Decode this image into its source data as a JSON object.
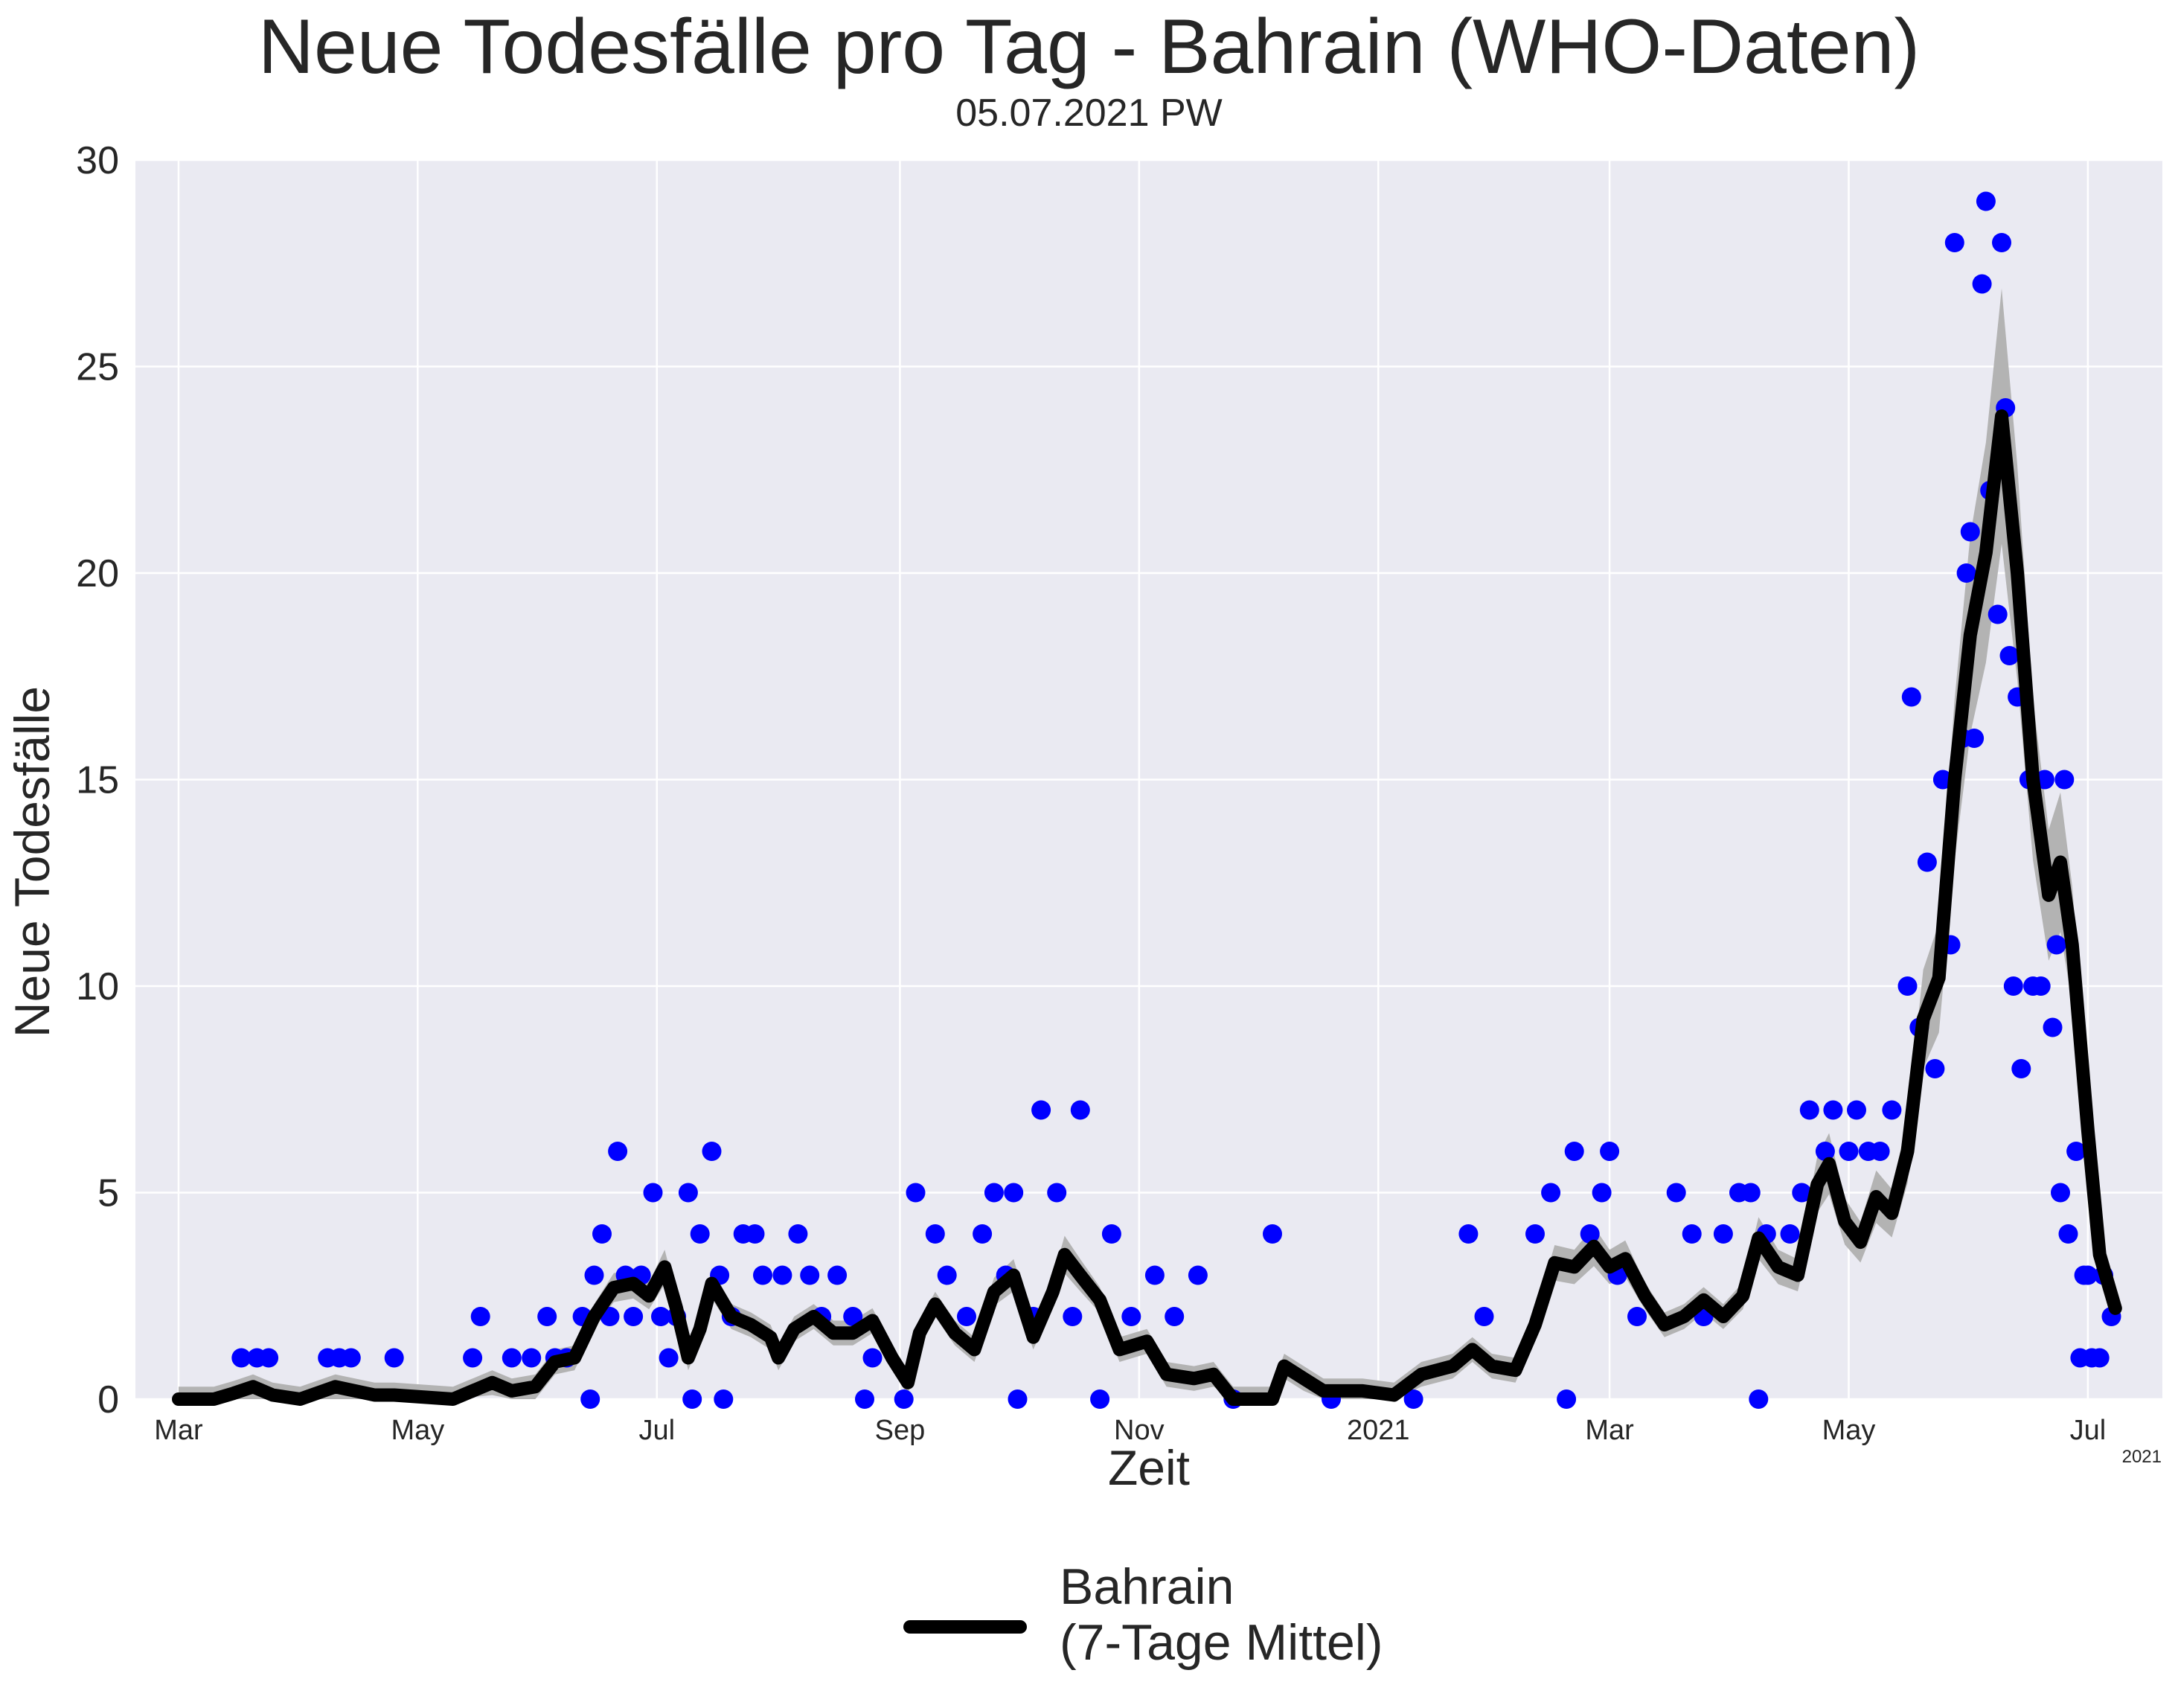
{
  "title": "Neue Todesfälle pro Tag - Bahrain (WHO-Daten)",
  "subtitle": "05.07.2021 PW",
  "colors": {
    "background": "#eaeaf2",
    "grid": "#ffffff",
    "points": "#0000ff",
    "line": "#000000",
    "band": "#b3b3b3"
  },
  "legend": {
    "label": "Bahrain\n(7-Tage Mittel)",
    "placement": "bottom-center"
  },
  "chart_data": {
    "type": "line",
    "title": "Neue Todesfälle pro Tag - Bahrain (WHO-Daten)",
    "xlabel": "Zeit",
    "ylabel": "Neue Todesfälle",
    "ylim": [
      0,
      30
    ],
    "yticks": [
      0,
      5,
      10,
      15,
      20,
      25,
      30
    ],
    "xlim": [
      "2020-02-19",
      "2021-07-20"
    ],
    "xticks": [
      {
        "date": "2020-03-01",
        "label": "Mar"
      },
      {
        "date": "2020-05-01",
        "label": "May"
      },
      {
        "date": "2020-07-01",
        "label": "Jul"
      },
      {
        "date": "2020-09-01",
        "label": "Sep"
      },
      {
        "date": "2020-11-01",
        "label": "Nov"
      },
      {
        "date": "2021-01-01",
        "label": "2021"
      },
      {
        "date": "2021-03-01",
        "label": "Mar"
      },
      {
        "date": "2021-05-01",
        "label": "May"
      },
      {
        "date": "2021-07-01",
        "label": "Jul"
      }
    ],
    "x_offset_label": "2021",
    "grid": true,
    "series": [
      {
        "name": "Bahrain\n(7-Tage Mittel)",
        "kind": "line",
        "points": [
          [
            "2020-03-01",
            0
          ],
          [
            "2020-03-10",
            0
          ],
          [
            "2020-03-15",
            0.14
          ],
          [
            "2020-03-20",
            0.3
          ],
          [
            "2020-03-25",
            0.1
          ],
          [
            "2020-04-01",
            0
          ],
          [
            "2020-04-10",
            0.3
          ],
          [
            "2020-04-20",
            0.1
          ],
          [
            "2020-04-25",
            0.1
          ],
          [
            "2020-05-10",
            0
          ],
          [
            "2020-05-20",
            0.4
          ],
          [
            "2020-05-25",
            0.2
          ],
          [
            "2020-05-31",
            0.3
          ],
          [
            "2020-06-05",
            0.9
          ],
          [
            "2020-06-10",
            1.0
          ],
          [
            "2020-06-15",
            2.0
          ],
          [
            "2020-06-20",
            2.7
          ],
          [
            "2020-06-25",
            2.8
          ],
          [
            "2020-06-29",
            2.5
          ],
          [
            "2020-07-03",
            3.2
          ],
          [
            "2020-07-06",
            2.2
          ],
          [
            "2020-07-09",
            1.0
          ],
          [
            "2020-07-12",
            1.7
          ],
          [
            "2020-07-15",
            2.8
          ],
          [
            "2020-07-20",
            2.0
          ],
          [
            "2020-07-25",
            1.8
          ],
          [
            "2020-07-30",
            1.5
          ],
          [
            "2020-08-01",
            1.0
          ],
          [
            "2020-08-05",
            1.7
          ],
          [
            "2020-08-10",
            2.0
          ],
          [
            "2020-08-15",
            1.6
          ],
          [
            "2020-08-20",
            1.6
          ],
          [
            "2020-08-25",
            1.9
          ],
          [
            "2020-08-30",
            1.0
          ],
          [
            "2020-09-03",
            0.4
          ],
          [
            "2020-09-06",
            1.6
          ],
          [
            "2020-09-10",
            2.3
          ],
          [
            "2020-09-15",
            1.6
          ],
          [
            "2020-09-20",
            1.2
          ],
          [
            "2020-09-25",
            2.6
          ],
          [
            "2020-09-30",
            3.0
          ],
          [
            "2020-10-05",
            1.5
          ],
          [
            "2020-10-10",
            2.6
          ],
          [
            "2020-10-13",
            3.5
          ],
          [
            "2020-10-17",
            3.0
          ],
          [
            "2020-10-22",
            2.4
          ],
          [
            "2020-10-27",
            1.2
          ],
          [
            "2020-11-03",
            1.4
          ],
          [
            "2020-11-08",
            0.6
          ],
          [
            "2020-11-15",
            0.5
          ],
          [
            "2020-11-20",
            0.6
          ],
          [
            "2020-11-25",
            0
          ],
          [
            "2020-12-05",
            0
          ],
          [
            "2020-12-08",
            0.8
          ],
          [
            "2020-12-13",
            0.5
          ],
          [
            "2020-12-18",
            0.2
          ],
          [
            "2020-12-28",
            0.2
          ],
          [
            "2021-01-05",
            0.1
          ],
          [
            "2021-01-12",
            0.6
          ],
          [
            "2021-01-20",
            0.8
          ],
          [
            "2021-01-25",
            1.2
          ],
          [
            "2021-01-30",
            0.8
          ],
          [
            "2021-02-05",
            0.7
          ],
          [
            "2021-02-10",
            1.8
          ],
          [
            "2021-02-15",
            3.3
          ],
          [
            "2021-02-20",
            3.2
          ],
          [
            "2021-02-25",
            3.7
          ],
          [
            "2021-03-01",
            3.2
          ],
          [
            "2021-03-05",
            3.4
          ],
          [
            "2021-03-10",
            2.5
          ],
          [
            "2021-03-15",
            1.8
          ],
          [
            "2021-03-20",
            2.0
          ],
          [
            "2021-03-25",
            2.4
          ],
          [
            "2021-03-30",
            2.0
          ],
          [
            "2021-04-04",
            2.5
          ],
          [
            "2021-04-08",
            3.9
          ],
          [
            "2021-04-13",
            3.2
          ],
          [
            "2021-04-18",
            3.0
          ],
          [
            "2021-04-23",
            5.2
          ],
          [
            "2021-04-26",
            5.7
          ],
          [
            "2021-04-30",
            4.3
          ],
          [
            "2021-05-04",
            3.8
          ],
          [
            "2021-05-08",
            4.9
          ],
          [
            "2021-05-12",
            4.5
          ],
          [
            "2021-05-16",
            6.0
          ],
          [
            "2021-05-20",
            9.2
          ],
          [
            "2021-05-24",
            10.2
          ],
          [
            "2021-05-28",
            15.0
          ],
          [
            "2021-06-01",
            18.5
          ],
          [
            "2021-06-05",
            20.5
          ],
          [
            "2021-06-09",
            23.8
          ],
          [
            "2021-06-13",
            20.0
          ],
          [
            "2021-06-17",
            15.0
          ],
          [
            "2021-06-21",
            12.2
          ],
          [
            "2021-06-24",
            13.0
          ],
          [
            "2021-06-27",
            11.0
          ],
          [
            "2021-07-01",
            6.5
          ],
          [
            "2021-07-04",
            3.5
          ],
          [
            "2021-07-08",
            2.2
          ]
        ]
      },
      {
        "name": "",
        "kind": "scatter",
        "points": [
          [
            "2020-03-17",
            1
          ],
          [
            "2020-03-21",
            1
          ],
          [
            "2020-03-24",
            1
          ],
          [
            "2020-04-08",
            1
          ],
          [
            "2020-04-11",
            1
          ],
          [
            "2020-04-14",
            1
          ],
          [
            "2020-04-25",
            1
          ],
          [
            "2020-05-15",
            1
          ],
          [
            "2020-05-17",
            2
          ],
          [
            "2020-05-25",
            1
          ],
          [
            "2020-05-30",
            1
          ],
          [
            "2020-06-03",
            2
          ],
          [
            "2020-06-05",
            1
          ],
          [
            "2020-06-08",
            1
          ],
          [
            "2020-06-12",
            2
          ],
          [
            "2020-06-15",
            3
          ],
          [
            "2020-06-17",
            4
          ],
          [
            "2020-06-19",
            2
          ],
          [
            "2020-06-21",
            6
          ],
          [
            "2020-06-23",
            3
          ],
          [
            "2020-06-25",
            2
          ],
          [
            "2020-06-27",
            3
          ],
          [
            "2020-06-30",
            5
          ],
          [
            "2020-07-02",
            2
          ],
          [
            "2020-07-04",
            1
          ],
          [
            "2020-07-06",
            2
          ],
          [
            "2020-07-09",
            5
          ],
          [
            "2020-07-12",
            4
          ],
          [
            "2020-07-15",
            6
          ],
          [
            "2020-07-17",
            3
          ],
          [
            "2020-07-20",
            2
          ],
          [
            "2020-07-23",
            4
          ],
          [
            "2020-07-26",
            4
          ],
          [
            "2020-07-28",
            3
          ],
          [
            "2020-08-02",
            3
          ],
          [
            "2020-08-06",
            4
          ],
          [
            "2020-08-09",
            3
          ],
          [
            "2020-08-12",
            2
          ],
          [
            "2020-08-16",
            3
          ],
          [
            "2020-08-20",
            2
          ],
          [
            "2020-08-25",
            1
          ],
          [
            "2020-09-05",
            5
          ],
          [
            "2020-09-10",
            4
          ],
          [
            "2020-09-13",
            3
          ],
          [
            "2020-09-18",
            2
          ],
          [
            "2020-09-22",
            4
          ],
          [
            "2020-09-25",
            5
          ],
          [
            "2020-09-28",
            3
          ],
          [
            "2020-09-30",
            5
          ],
          [
            "2020-10-05",
            2
          ],
          [
            "2020-10-07",
            7
          ],
          [
            "2020-10-11",
            5
          ],
          [
            "2020-10-15",
            2
          ],
          [
            "2020-10-17",
            7
          ],
          [
            "2020-10-25",
            4
          ],
          [
            "2020-10-30",
            2
          ],
          [
            "2020-11-05",
            3
          ],
          [
            "2020-11-10",
            2
          ],
          [
            "2020-11-16",
            3
          ],
          [
            "2020-12-05",
            4
          ],
          [
            "2021-01-24",
            4
          ],
          [
            "2021-01-28",
            2
          ],
          [
            "2021-02-10",
            4
          ],
          [
            "2021-02-14",
            5
          ],
          [
            "2021-02-20",
            6
          ],
          [
            "2021-02-24",
            4
          ],
          [
            "2021-02-27",
            5
          ],
          [
            "2021-03-01",
            6
          ],
          [
            "2021-03-03",
            3
          ],
          [
            "2021-03-08",
            2
          ],
          [
            "2021-03-18",
            5
          ],
          [
            "2021-03-22",
            4
          ],
          [
            "2021-03-25",
            2
          ],
          [
            "2021-03-30",
            4
          ],
          [
            "2021-04-03",
            5
          ],
          [
            "2021-04-06",
            5
          ],
          [
            "2021-04-10",
            4
          ],
          [
            "2021-04-16",
            4
          ],
          [
            "2021-04-19",
            5
          ],
          [
            "2021-04-21",
            7
          ],
          [
            "2021-04-25",
            6
          ],
          [
            "2021-04-27",
            7
          ],
          [
            "2021-05-01",
            6
          ],
          [
            "2021-05-03",
            7
          ],
          [
            "2021-05-06",
            6
          ],
          [
            "2021-05-09",
            6
          ],
          [
            "2021-05-12",
            7
          ],
          [
            "2021-05-16",
            10
          ],
          [
            "2021-05-17",
            17
          ],
          [
            "2021-05-19",
            9
          ],
          [
            "2021-05-21",
            13
          ],
          [
            "2021-05-23",
            8
          ],
          [
            "2021-05-25",
            15
          ],
          [
            "2021-05-27",
            11
          ],
          [
            "2021-05-28",
            28
          ],
          [
            "2021-05-30",
            16
          ],
          [
            "2021-05-31",
            20
          ],
          [
            "2021-06-01",
            21
          ],
          [
            "2021-06-02",
            16
          ],
          [
            "2021-06-04",
            27
          ],
          [
            "2021-06-05",
            29
          ],
          [
            "2021-06-06",
            22
          ],
          [
            "2021-06-08",
            19
          ],
          [
            "2021-06-09",
            28
          ],
          [
            "2021-06-10",
            24
          ],
          [
            "2021-06-11",
            18
          ],
          [
            "2021-06-12",
            10
          ],
          [
            "2021-06-13",
            17
          ],
          [
            "2021-06-14",
            8
          ],
          [
            "2021-06-16",
            15
          ],
          [
            "2021-06-17",
            10
          ],
          [
            "2021-06-19",
            10
          ],
          [
            "2021-06-20",
            15
          ],
          [
            "2021-06-22",
            9
          ],
          [
            "2021-06-23",
            11
          ],
          [
            "2021-06-24",
            5
          ],
          [
            "2021-06-25",
            15
          ],
          [
            "2021-06-26",
            4
          ],
          [
            "2021-06-28",
            6
          ],
          [
            "2021-06-29",
            1
          ],
          [
            "2021-06-30",
            3
          ],
          [
            "2021-07-01",
            3
          ],
          [
            "2021-07-02",
            1
          ],
          [
            "2021-07-04",
            1
          ],
          [
            "2021-07-05",
            3
          ],
          [
            "2021-07-07",
            2
          ],
          [
            "2020-06-14",
            0
          ],
          [
            "2020-07-10",
            0
          ],
          [
            "2020-07-18",
            0
          ],
          [
            "2020-08-23",
            0
          ],
          [
            "2020-09-02",
            0
          ],
          [
            "2020-10-01",
            0
          ],
          [
            "2020-10-22",
            0
          ],
          [
            "2021-02-18",
            0
          ],
          [
            "2021-04-08",
            0
          ],
          [
            "2020-11-25",
            0
          ],
          [
            "2020-12-20",
            0
          ],
          [
            "2021-01-10",
            0
          ]
        ]
      }
    ]
  }
}
